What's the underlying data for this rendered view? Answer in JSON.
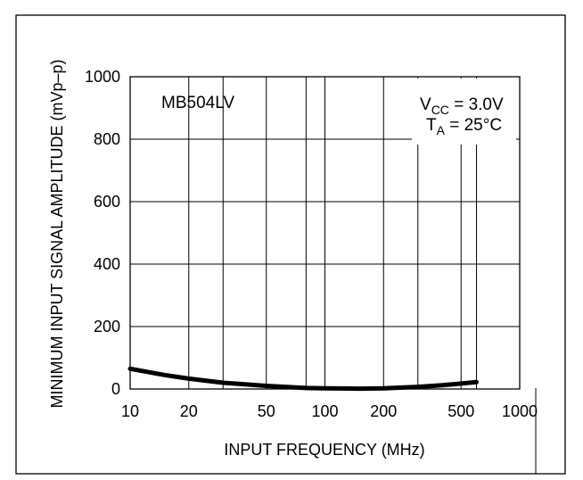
{
  "chart_data": {
    "type": "line",
    "xlabel": "INPUT FREQUENCY (MHz)",
    "ylabel": "MINIMUM INPUT SIGNAL AMPLITUDE (mVp–p)",
    "x_scale": "log",
    "xlim": [
      10,
      1000
    ],
    "ylim": [
      0,
      1000
    ],
    "grid": true,
    "x_ticks": [
      10,
      20,
      50,
      100,
      200,
      500,
      1000
    ],
    "x_tick_labels": [
      "10",
      "20",
      "50",
      "100",
      "200",
      "500",
      "1000"
    ],
    "y_ticks": [
      0,
      200,
      400,
      600,
      800,
      1000
    ],
    "y_tick_labels": [
      "0",
      "200",
      "400",
      "600",
      "800",
      "1000"
    ],
    "annotations": {
      "device": "MB504LV",
      "vcc_main": "V",
      "vcc_sub": "CC",
      "vcc_rest": " = 3.0V",
      "ta_main": "T",
      "ta_sub": "A",
      "ta_rest": " = 25°C"
    },
    "series": [
      {
        "x": [
          10,
          15,
          20,
          30,
          50,
          80,
          100,
          150,
          200,
          300,
          400,
          600
        ],
        "y": [
          65,
          45,
          33,
          20,
          10,
          3,
          2,
          1,
          2,
          7,
          12,
          22
        ]
      }
    ]
  }
}
